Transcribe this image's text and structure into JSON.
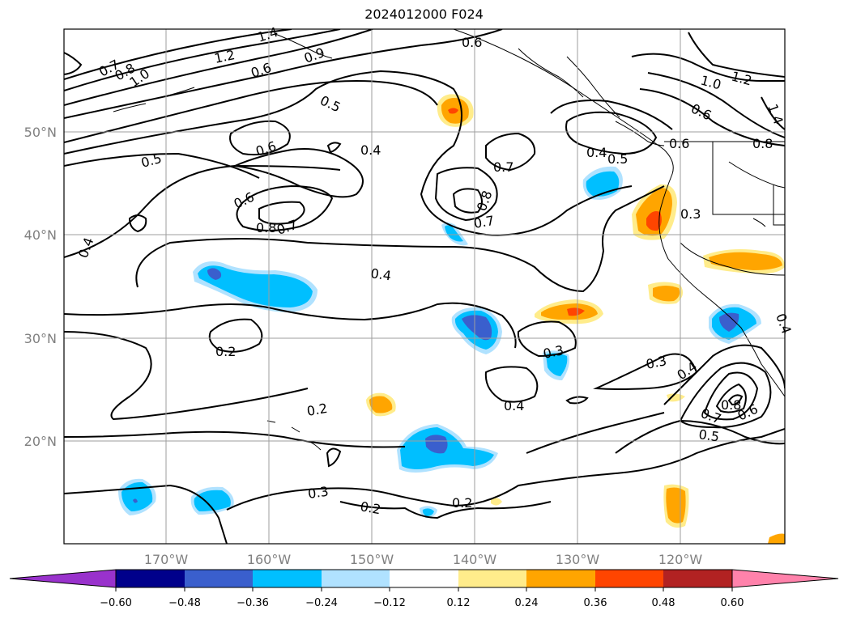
{
  "title": "2024012000 F024",
  "latitude_labels": [
    "50°N",
    "40°N",
    "30°N",
    "20°N"
  ],
  "longitude_labels": [
    "170°W",
    "160°W",
    "150°W",
    "140°W",
    "130°W",
    "120°W"
  ],
  "colorbar": {
    "colors": [
      "#9932CC",
      "#00008B",
      "#3A5FCD",
      "#00BFFF",
      "#B0E2FF",
      "#FFFFFF",
      "#FFEC8B",
      "#FFA500",
      "#FF4500",
      "#B22222",
      "#FF82AB"
    ],
    "ticks": [
      "−0.60",
      "−0.48",
      "−0.36",
      "−0.24",
      "−0.12",
      "0.12",
      "0.24",
      "0.36",
      "0.48",
      "0.60"
    ]
  },
  "contour_labels": [
    "1.4",
    "1.2",
    "0.9",
    "0.8",
    "0.7",
    "1.0",
    "0.6",
    "0.5",
    "0.6",
    "0.5",
    "0.4",
    "0.6",
    "0.6",
    "0.8",
    "0.7",
    "0.4",
    "0.4",
    "0.7",
    "0.8",
    "0.7",
    "0.4",
    "0.5",
    "0.6",
    "1.0",
    "1.2",
    "0.6",
    "0.8",
    "1.4",
    "0.3",
    "0.2",
    "0.3",
    "0.4",
    "0.3",
    "0.4",
    "0.8",
    "0.7",
    "0.6",
    "0.5",
    "0.2",
    "0.3",
    "0.2",
    "0.2",
    "0.4"
  ]
}
